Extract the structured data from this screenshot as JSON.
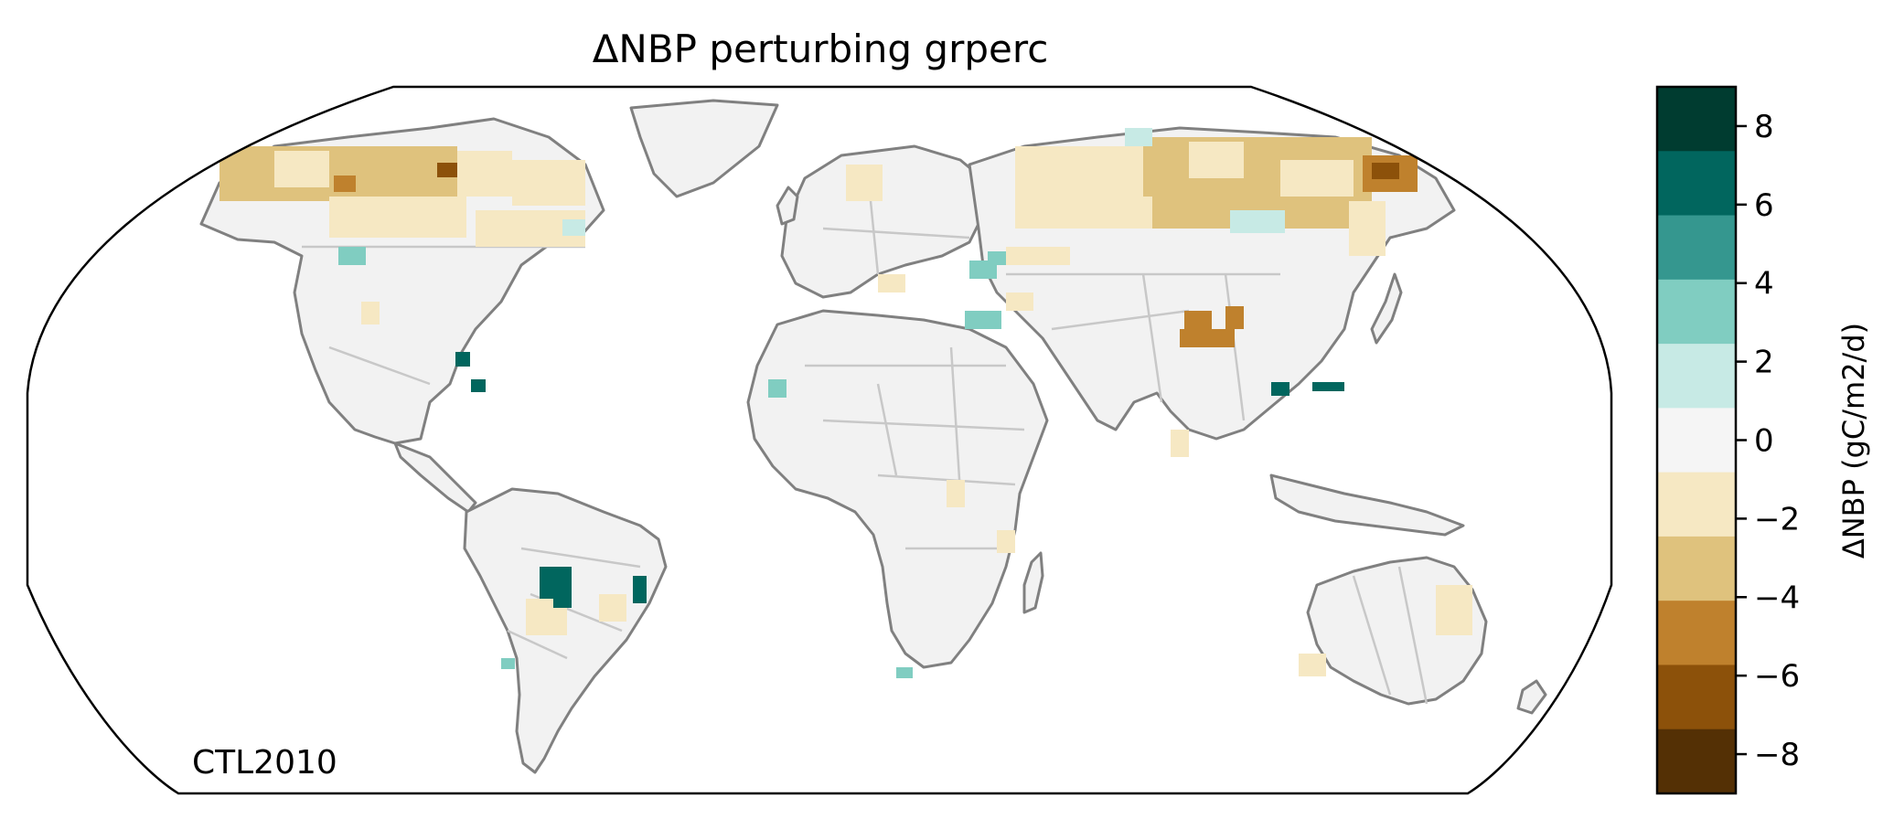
{
  "title": "ΔNBP perturbing grperc",
  "annotation": "CTL2010",
  "colorbar": {
    "label": "ΔNBP (gC/m2/d)",
    "ticks": [
      "8",
      "6",
      "4",
      "2",
      "0",
      "−2",
      "−4",
      "−6",
      "−8"
    ],
    "tick_values": [
      8,
      6,
      4,
      2,
      0,
      -2,
      -4,
      -6,
      -8
    ],
    "range": [
      -9,
      9
    ],
    "bins": [
      {
        "from": 7,
        "to": 9,
        "color": "#003c30"
      },
      {
        "from": 5,
        "to": 7,
        "color": "#01665e"
      },
      {
        "from": 3,
        "to": 5,
        "color": "#35978f"
      },
      {
        "from": 1,
        "to": 3,
        "color": "#80cdc1"
      },
      {
        "from": 0.2,
        "to": 1,
        "color": "#c7eae5"
      },
      {
        "from": -0.2,
        "to": 0.2,
        "color": "#f5f5f5"
      },
      {
        "from": -3,
        "to": -1,
        "color": "#f6e8c3"
      },
      {
        "from": -5,
        "to": -3,
        "color": "#dfc27d"
      },
      {
        "from": -7,
        "to": -5,
        "color": "#bf812d"
      },
      {
        "from": -9,
        "to": -7,
        "color": "#8c510a"
      },
      {
        "from": -11,
        "to": -9,
        "color": "#543005"
      }
    ]
  },
  "map": {
    "projection": "Robinson",
    "land_color": "#f2f2f2",
    "coastline_color": "#808080",
    "border_color": "#c8c8c8"
  }
}
